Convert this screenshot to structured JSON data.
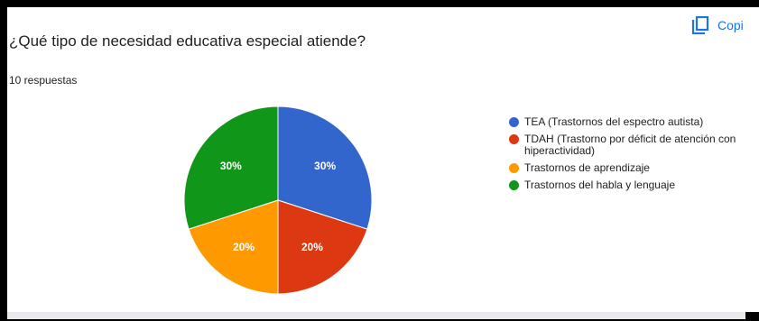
{
  "question": {
    "title": "¿Qué tipo de necesidad educativa especial atiende?",
    "responses_label": "10 respuestas"
  },
  "toolbar": {
    "copy_label": "Copi",
    "copy_icon": "copy-icon"
  },
  "chart_data": {
    "type": "pie",
    "categories": [
      "TEA (Trastornos del espectro autista)",
      "TDAH (Trastorno por déficit de atención con hiperactividad)",
      "Trastornos de aprendizaje",
      "Trastornos del habla y lenguaje"
    ],
    "values": [
      30,
      20,
      20,
      30
    ],
    "labels": [
      "30%",
      "20%",
      "20%",
      "30%"
    ],
    "colors": [
      "#3366cc",
      "#dc3912",
      "#ff9900",
      "#109618"
    ],
    "legend_position": "right"
  }
}
